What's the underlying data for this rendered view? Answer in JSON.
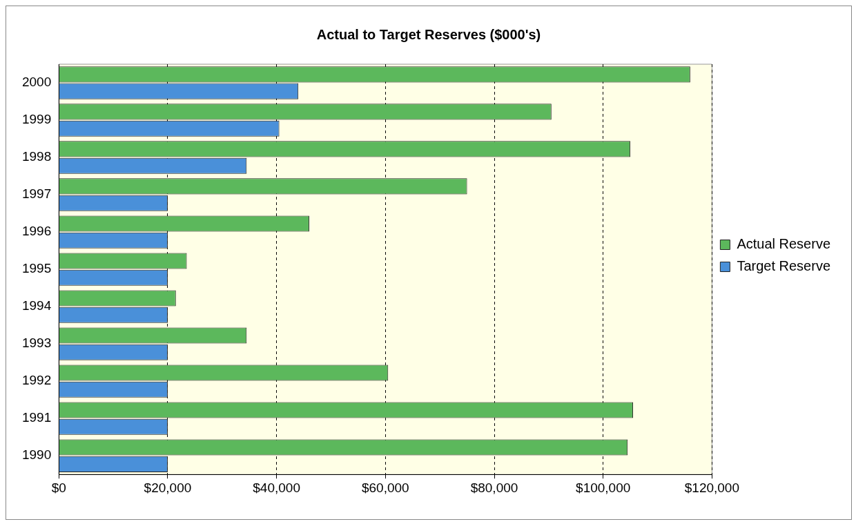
{
  "chart_data": {
    "type": "bar",
    "orientation": "horizontal",
    "title": "Actual to Target Reserves ($000's)",
    "categories": [
      "2000",
      "1999",
      "1998",
      "1997",
      "1996",
      "1995",
      "1994",
      "1993",
      "1992",
      "1991",
      "1990"
    ],
    "series": [
      {
        "name": "Actual Reserve",
        "color": "#5cb85c",
        "values": [
          116000,
          90500,
          105000,
          75000,
          46000,
          23500,
          21500,
          34500,
          60500,
          105500,
          104500
        ]
      },
      {
        "name": "Target Reserve",
        "color": "#4a90d9",
        "values": [
          44000,
          40500,
          34500,
          20000,
          20000,
          20000,
          20000,
          20000,
          20000,
          20000,
          20000
        ]
      }
    ],
    "xlim": [
      0,
      120000
    ],
    "xticks": [
      {
        "value": 0,
        "label": "$0"
      },
      {
        "value": 20000,
        "label": "$20,000"
      },
      {
        "value": 40000,
        "label": "$40,000"
      },
      {
        "value": 60000,
        "label": "$60,000"
      },
      {
        "value": 80000,
        "label": "$80,000"
      },
      {
        "value": 100000,
        "label": "$100,000"
      },
      {
        "value": 120000,
        "label": "$120,000"
      }
    ],
    "grid": "x",
    "line_style": "dashed",
    "legend": "right"
  }
}
